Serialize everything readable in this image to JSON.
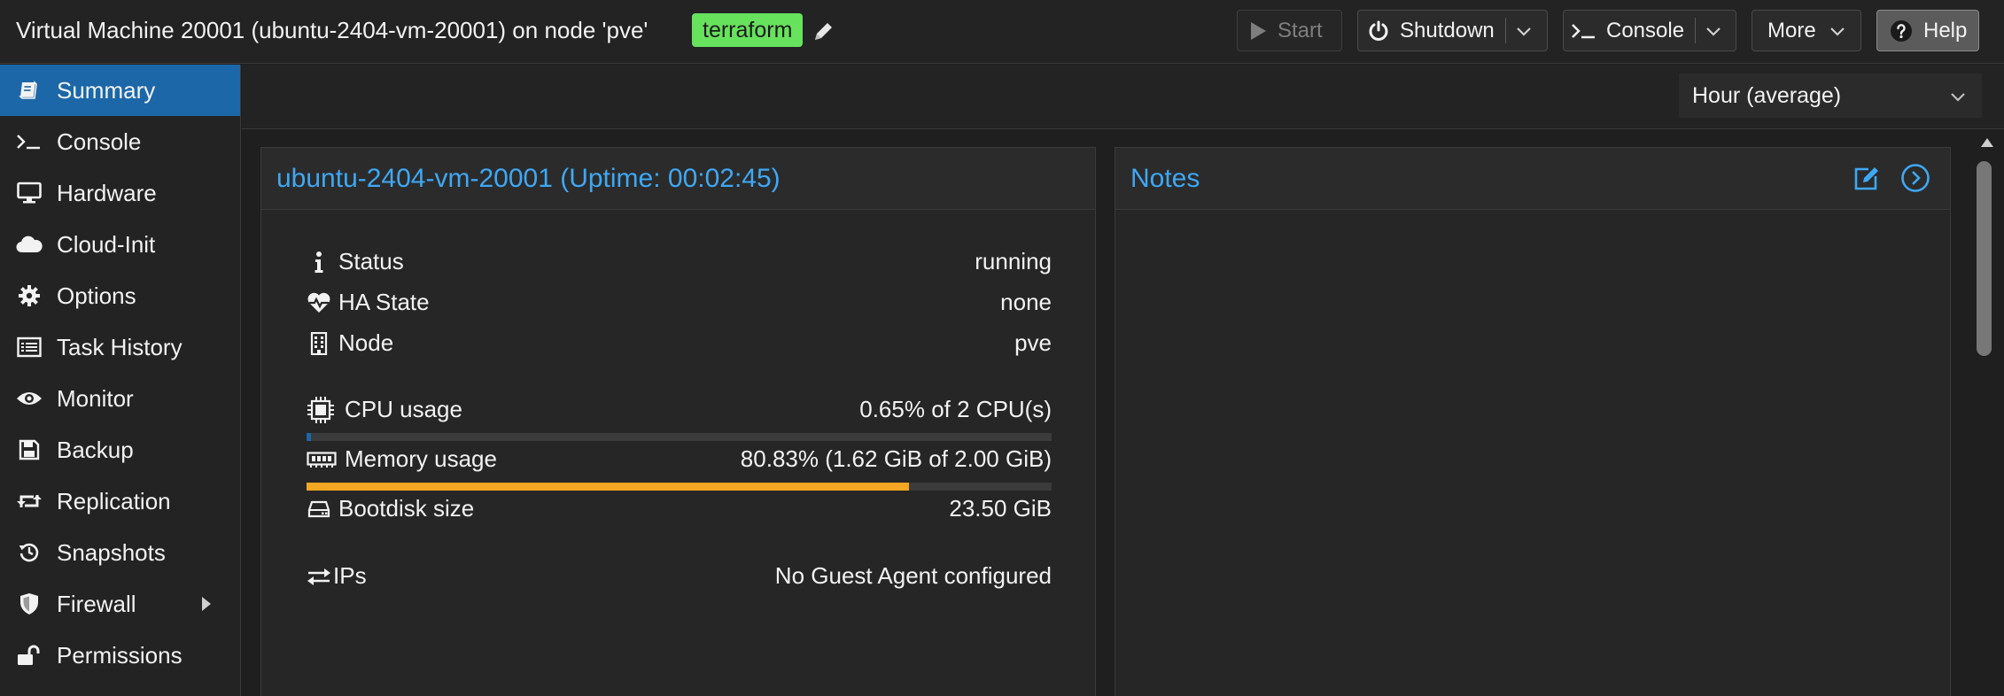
{
  "header": {
    "title": "Virtual Machine 20001 (ubuntu-2404-vm-20001) on node 'pve'",
    "tag": "terraform",
    "buttons": {
      "start": "Start",
      "shutdown": "Shutdown",
      "console": "Console",
      "more": "More",
      "help": "Help"
    }
  },
  "sidebar": {
    "items": [
      {
        "label": "Summary",
        "icon": "book-icon",
        "active": true
      },
      {
        "label": "Console",
        "icon": "terminal-icon"
      },
      {
        "label": "Hardware",
        "icon": "monitor-icon"
      },
      {
        "label": "Cloud-Init",
        "icon": "cloud-icon"
      },
      {
        "label": "Options",
        "icon": "gear-icon"
      },
      {
        "label": "Task History",
        "icon": "list-icon"
      },
      {
        "label": "Monitor",
        "icon": "eye-icon"
      },
      {
        "label": "Backup",
        "icon": "floppy-icon"
      },
      {
        "label": "Replication",
        "icon": "retweet-icon"
      },
      {
        "label": "Snapshots",
        "icon": "history-icon"
      },
      {
        "label": "Firewall",
        "icon": "shield-icon"
      },
      {
        "label": "Permissions",
        "icon": "unlock-icon"
      }
    ]
  },
  "toolbar": {
    "timeframe": "Hour (average)"
  },
  "status_panel": {
    "title": "ubuntu-2404-vm-20001 (Uptime: 00:02:45)",
    "rows": {
      "status": {
        "label": "Status",
        "value": "running",
        "icon": "info-icon"
      },
      "ha_state": {
        "label": "HA State",
        "value": "none",
        "icon": "heartbeat-icon"
      },
      "node": {
        "label": "Node",
        "value": "pve",
        "icon": "building-icon"
      },
      "cpu": {
        "label": "CPU usage",
        "value": "0.65% of 2 CPU(s)",
        "icon": "cpu-icon",
        "fraction": 0.0065
      },
      "memory": {
        "label": "Memory usage",
        "value": "80.83% (1.62 GiB of 2.00 GiB)",
        "icon": "memory-icon",
        "fraction": 0.8083
      },
      "bootdisk": {
        "label": "Bootdisk size",
        "value": "23.50 GiB",
        "icon": "harddisk-icon"
      },
      "ips": {
        "label": "IPs",
        "value": "No Guest Agent configured",
        "icon": "exchange-icon"
      }
    }
  },
  "notes_panel": {
    "title": "Notes"
  },
  "colors": {
    "accent": "#3ea8f5",
    "active_nav": "#1b67a8",
    "tag_bg": "#67e25d",
    "cpu_bar": "#1b67a8",
    "memory_bar": "#f5a623"
  }
}
